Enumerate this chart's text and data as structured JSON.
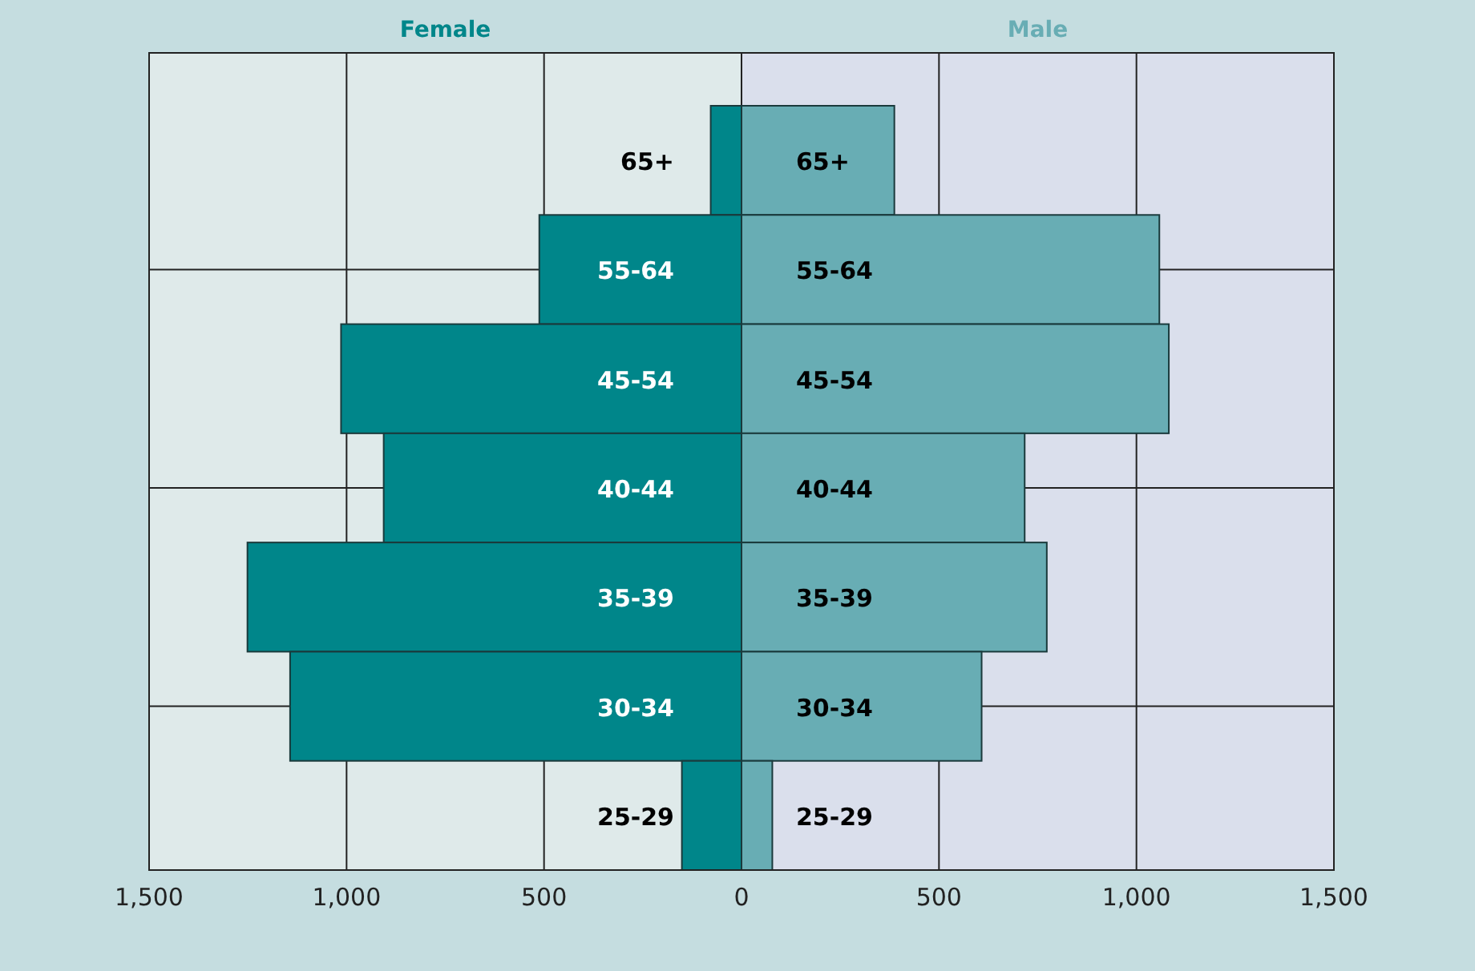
{
  "chart_data": {
    "type": "bar",
    "orientation": "horizontal",
    "stacked": true,
    "categories": [
      "65+",
      "55-64",
      "45-54",
      "40-44",
      "35-39",
      "30-34",
      "25-29"
    ],
    "series": [
      {
        "name": "Female",
        "color": "#00868a",
        "values": [
          -78,
          -512,
          -1014,
          -906,
          -1251,
          -1143,
          -151
        ]
      },
      {
        "name": "Male",
        "color": "#68adb4",
        "values": [
          387,
          1058,
          1082,
          717,
          773,
          608,
          78
        ]
      }
    ],
    "xlim": [
      -1500,
      1500
    ],
    "xticks": [
      {
        "value": -1500,
        "label": "1,500"
      },
      {
        "value": -1000,
        "label": "1,000"
      },
      {
        "value": -500,
        "label": "500"
      },
      0,
      500,
      {
        "value": 1000,
        "label": "1,000"
      },
      {
        "value": 1500,
        "label": "1,500"
      }
    ],
    "bands": [
      {
        "axis": "x",
        "from": -1500,
        "to": 0,
        "color": "#dfeaea"
      },
      {
        "axis": "x",
        "from": 0,
        "to": 1500,
        "color": "#dadfec"
      }
    ],
    "grid": true,
    "legend": "top"
  }
}
